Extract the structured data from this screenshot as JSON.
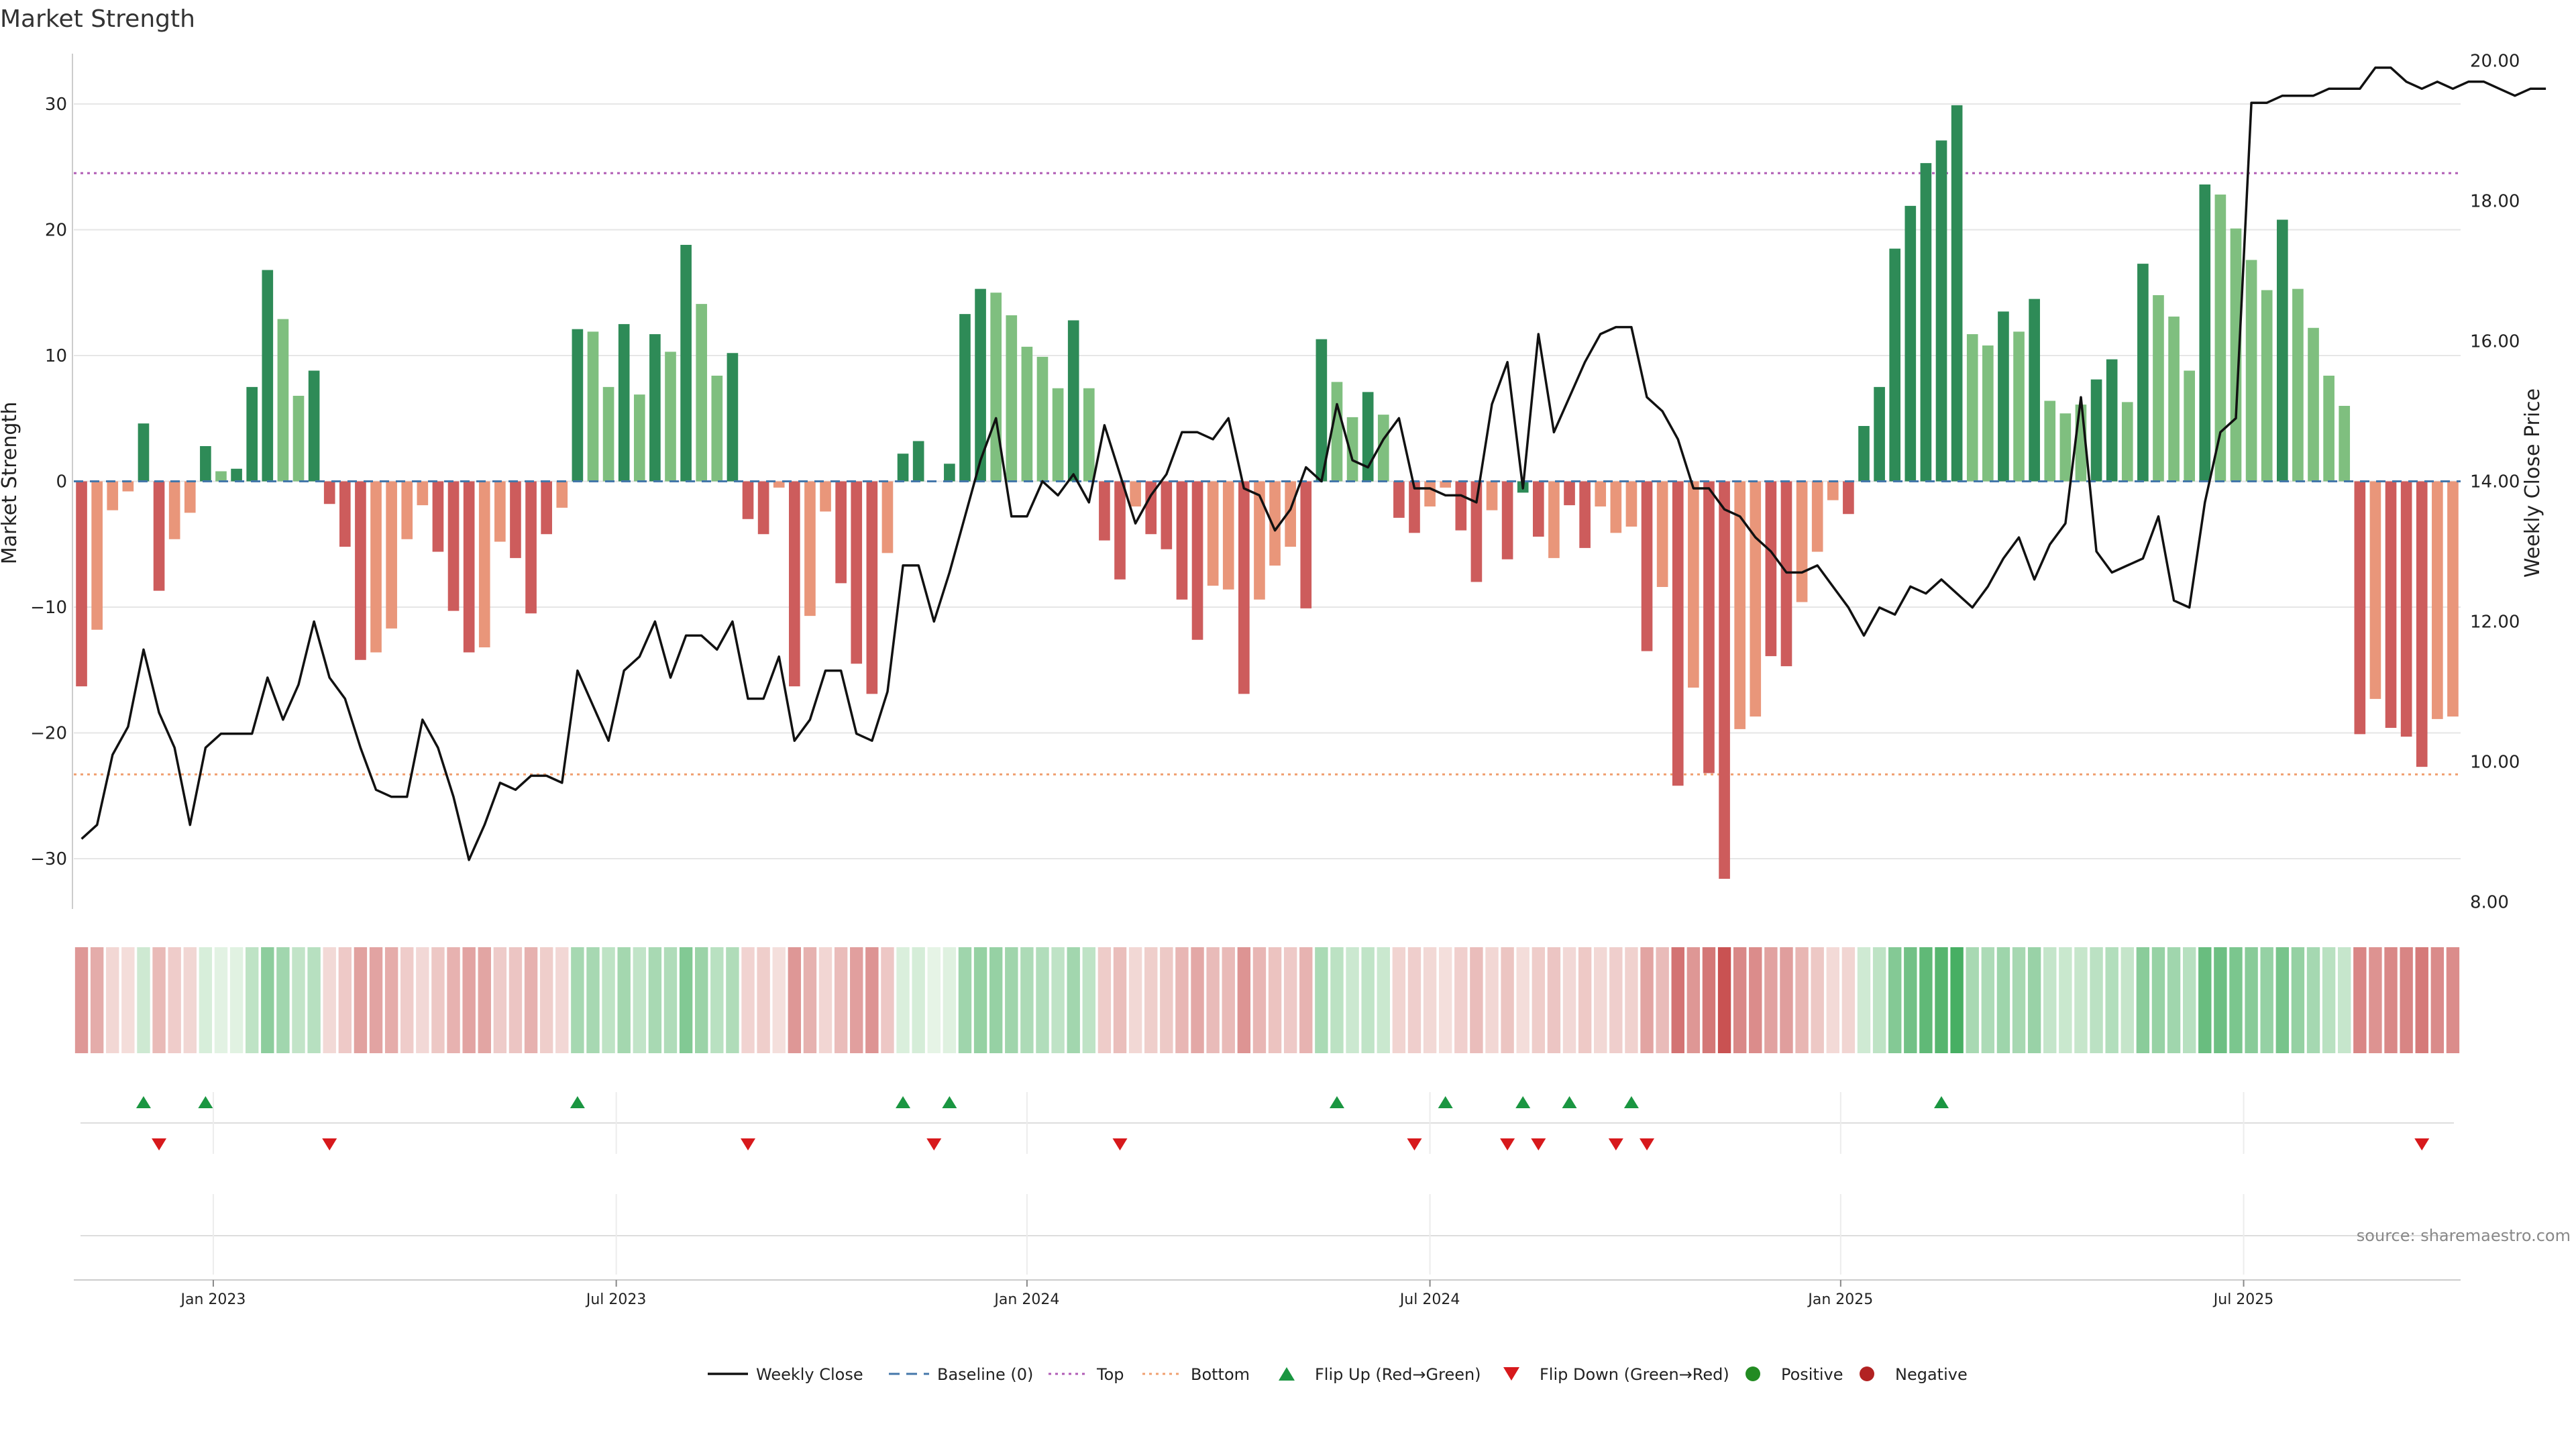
{
  "chart_title": "Market Strength",
  "source_text": "source: sharemaestro.com",
  "colors": {
    "strong_green": "#2e8b57",
    "light_green": "#7fbf7f",
    "strong_red": "#cd5c5c",
    "light_red": "#e9967a",
    "price_line": "#111111",
    "baseline": "#4477aa",
    "top_line": "#b05bb5",
    "bottom_line": "#f0a070",
    "flip_up": "#1a9641",
    "flip_down": "#d7191c",
    "positive": "#228b22",
    "negative": "#b22222"
  },
  "legend": [
    {
      "label": "Weekly Close",
      "kind": "line-solid",
      "color": "#111111"
    },
    {
      "label": "Baseline (0)",
      "kind": "line-dash",
      "color": "#4477aa"
    },
    {
      "label": "Top",
      "kind": "line-dot",
      "color": "#b05bb5"
    },
    {
      "label": "Bottom",
      "kind": "line-dot",
      "color": "#f0a070"
    },
    {
      "label": "Flip Up (Red→Green)",
      "kind": "tri-up",
      "color": "#1a9641"
    },
    {
      "label": "Flip Down (Green→Red)",
      "kind": "tri-down",
      "color": "#d7191c"
    },
    {
      "label": "Positive",
      "kind": "dot",
      "color": "#228b22"
    },
    {
      "label": "Negative",
      "kind": "dot",
      "color": "#b22222"
    }
  ],
  "chart_data": {
    "type": "bar",
    "title": "Market Strength",
    "xlabel": "",
    "ylabel": "Market Strength",
    "y2label": "Weekly Close Price",
    "ylim": [
      -34,
      34
    ],
    "y2lim": [
      7.9,
      20.1
    ],
    "yticks": [
      -30,
      -20,
      -10,
      0,
      10,
      20,
      30
    ],
    "y2ticks": [
      "8.00",
      "10.00",
      "12.00",
      "14.00",
      "16.00",
      "18.00",
      "20.00"
    ],
    "y2tick_values": [
      8,
      10,
      12,
      14,
      16,
      18,
      20
    ],
    "xticks": [
      "Jan 2023",
      "Jul 2023",
      "Jan 2024",
      "Jul 2024",
      "Jan 2025",
      "Jul 2025"
    ],
    "xtick_index": [
      8.5,
      34.5,
      61,
      87,
      113.5,
      139.5
    ],
    "top_level": 24.5,
    "bottom_level": -23.3,
    "strength": [
      -16.3,
      -11.8,
      -2.3,
      -0.8,
      4.6,
      -8.7,
      -4.6,
      -2.5,
      2.8,
      0.8,
      1.0,
      7.5,
      16.8,
      12.9,
      6.8,
      8.8,
      -1.8,
      -5.2,
      -14.2,
      -13.6,
      -11.7,
      -4.6,
      -1.9,
      -5.6,
      -10.3,
      -13.6,
      -13.2,
      -4.8,
      -6.1,
      -10.5,
      -4.2,
      -2.1,
      12.1,
      11.9,
      7.5,
      12.5,
      6.9,
      11.7,
      10.3,
      18.8,
      14.1,
      8.4,
      10.2,
      -3.0,
      -4.2,
      -0.5,
      -16.3,
      -10.7,
      -2.4,
      -8.1,
      -14.5,
      -16.9,
      -5.7,
      2.2,
      3.2,
      0,
      1.4,
      13.3,
      15.3,
      15.0,
      13.2,
      10.7,
      9.9,
      7.4,
      12.8,
      7.4,
      -4.7,
      -7.8,
      -2.0,
      -4.2,
      -5.4,
      -9.4,
      -12.6,
      -8.3,
      -8.6,
      -16.9,
      -9.4,
      -6.7,
      -5.2,
      -10.1,
      11.3,
      7.9,
      5.1,
      7.1,
      5.3,
      -2.9,
      -4.1,
      -2.0,
      -0.5,
      -3.9,
      -8.0,
      -2.3,
      -6.2,
      -0.9,
      -4.4,
      -6.1,
      -1.9,
      -5.3,
      -2.0,
      -4.1,
      -3.6,
      -13.5,
      -8.4,
      -24.2,
      -16.4,
      -23.2,
      -31.6,
      -19.7,
      -18.7,
      -13.9,
      -14.7,
      -9.6,
      -5.6,
      -1.5,
      -2.6,
      4.4,
      7.5,
      18.5,
      21.9,
      25.3,
      27.1,
      29.9,
      11.7,
      10.8,
      13.5,
      11.9,
      14.5,
      6.4,
      5.4,
      6.1,
      8.1,
      9.7,
      6.3,
      17.3,
      14.8,
      13.1,
      8.8,
      23.6,
      22.8,
      20.1,
      17.6,
      15.2,
      20.8,
      15.3,
      12.2,
      8.4,
      6.0,
      -20.1,
      -17.3,
      -19.6,
      -20.3,
      -22.7,
      -18.9,
      -18.7
    ],
    "bar_strength_class": [
      "r",
      "l",
      "l",
      "l",
      "g",
      "r",
      "l",
      "l",
      "g",
      "lg",
      "g",
      "g",
      "g",
      "lg",
      "lg",
      "g",
      "r",
      "r",
      "r",
      "l",
      "l",
      "l",
      "l",
      "r",
      "r",
      "r",
      "l",
      "l",
      "r",
      "r",
      "r",
      "l",
      "g",
      "lg",
      "lg",
      "g",
      "lg",
      "g",
      "lg",
      "g",
      "lg",
      "lg",
      "g",
      "r",
      "r",
      "l",
      "r",
      "l",
      "l",
      "r",
      "r",
      "r",
      "l",
      "g",
      "g",
      "g",
      "g",
      "g",
      "g",
      "lg",
      "lg",
      "lg",
      "lg",
      "lg",
      "g",
      "lg",
      "r",
      "r",
      "l",
      "r",
      "r",
      "r",
      "r",
      "l",
      "l",
      "r",
      "l",
      "l",
      "l",
      "r",
      "g",
      "lg",
      "lg",
      "g",
      "lg",
      "r",
      "r",
      "l",
      "l",
      "r",
      "r",
      "l",
      "r",
      "g",
      "r",
      "l",
      "r",
      "r",
      "l",
      "l",
      "l",
      "r",
      "l",
      "r",
      "l",
      "r",
      "r",
      "l",
      "l",
      "r",
      "r",
      "l",
      "l",
      "l",
      "r",
      "g",
      "g",
      "g",
      "g",
      "g",
      "g",
      "g",
      "lg",
      "lg",
      "g",
      "lg",
      "g",
      "lg",
      "lg",
      "lg",
      "g",
      "g",
      "lg",
      "g",
      "lg",
      "lg",
      "lg",
      "g",
      "lg",
      "lg",
      "lg",
      "lg",
      "g",
      "lg",
      "lg",
      "lg",
      "lg",
      "r",
      "l",
      "r",
      "r",
      "r",
      "l",
      "l"
    ],
    "price": [
      8.9,
      9.1,
      10.1,
      10.5,
      11.6,
      10.7,
      10.2,
      9.1,
      10.2,
      10.4,
      10.4,
      10.4,
      11.2,
      10.6,
      11.1,
      12.0,
      11.2,
      10.9,
      10.2,
      9.6,
      9.5,
      9.5,
      10.6,
      10.2,
      9.5,
      8.6,
      9.1,
      9.7,
      9.6,
      9.8,
      9.8,
      9.7,
      11.3,
      10.8,
      10.3,
      11.3,
      11.5,
      12.0,
      11.2,
      11.8,
      11.8,
      11.6,
      12.0,
      10.9,
      10.9,
      11.5,
      10.3,
      10.6,
      11.3,
      11.3,
      10.4,
      10.3,
      11.0,
      12.8,
      12.8,
      12.0,
      12.7,
      13.5,
      14.3,
      14.9,
      13.5,
      13.5,
      14.0,
      13.8,
      14.1,
      13.7,
      14.8,
      14.1,
      13.4,
      13.8,
      14.1,
      14.7,
      14.7,
      14.6,
      14.9,
      13.9,
      13.8,
      13.3,
      13.6,
      14.2,
      14.0,
      15.1,
      14.3,
      14.2,
      14.6,
      14.9,
      13.9,
      13.9,
      13.8,
      13.8,
      13.7,
      15.1,
      15.7,
      13.9,
      16.1,
      14.7,
      15.2,
      15.7,
      16.1,
      16.2,
      16.2,
      15.2,
      15.0,
      14.6,
      13.9,
      13.9,
      13.6,
      13.5,
      13.2,
      13.0,
      12.7,
      12.7,
      12.8,
      12.5,
      12.2,
      11.8,
      12.2,
      12.1,
      12.5,
      12.4,
      12.6,
      12.4,
      12.2,
      12.5,
      12.9,
      13.2,
      12.6,
      13.1,
      13.4,
      15.2,
      13.0,
      12.7,
      12.8,
      12.9,
      13.5,
      12.3,
      12.2,
      13.7,
      14.7,
      14.9,
      19.4,
      19.4,
      19.5,
      19.5,
      19.5,
      19.6,
      19.6,
      19.6,
      19.9,
      19.9,
      19.7,
      19.6,
      19.7,
      19.6,
      19.7,
      19.7,
      19.6,
      19.5,
      19.6,
      19.6
    ],
    "flip_up_index": [
      4,
      8,
      32,
      53,
      56,
      81,
      88,
      93,
      96,
      100,
      120
    ],
    "flip_down_index": [
      5,
      16,
      43,
      55,
      67,
      86,
      92,
      94,
      99,
      101,
      151
    ],
    "heat_strength": [
      -16.3,
      -11.8,
      -2.3,
      -0.8,
      4.6,
      -8.7,
      -4.6,
      -2.5,
      2.8,
      0.8,
      1.0,
      7.5,
      16.8,
      12.9,
      6.8,
      8.8,
      -1.8,
      -5.2,
      -14.2,
      -13.6,
      -11.7,
      -4.6,
      -1.9,
      -5.6,
      -10.3,
      -13.6,
      -13.2,
      -4.8,
      -6.1,
      -10.5,
      -4.2,
      -2.1,
      12.1,
      11.9,
      7.5,
      12.5,
      6.9,
      11.7,
      10.3,
      18.8,
      14.1,
      8.4,
      10.2,
      -3.0,
      -4.2,
      -0.5,
      -16.3,
      -10.7,
      -2.4,
      -8.1,
      -14.5,
      -16.9,
      -5.7,
      2.2,
      3.2,
      0,
      1.4,
      13.3,
      15.3,
      15.0,
      13.2,
      10.7,
      9.9,
      7.4,
      12.8,
      7.4,
      -4.7,
      -7.8,
      -2.0,
      -4.2,
      -5.4,
      -9.4,
      -12.6,
      -8.3,
      -8.6,
      -16.9,
      -9.4,
      -6.7,
      -5.2,
      -10.1,
      11.3,
      7.9,
      5.1,
      7.1,
      5.3,
      -2.9,
      -4.1,
      -2.0,
      -0.5,
      -3.9,
      -8.0,
      -2.3,
      -6.2,
      -0.9,
      -4.4,
      -6.1,
      -1.9,
      -5.3,
      -2.0,
      -4.1,
      -3.6,
      -13.5,
      -8.4,
      -24.2,
      -16.4,
      -23.2,
      -31.6,
      -19.7,
      -18.7,
      -13.9,
      -14.7,
      -9.6,
      -5.6,
      -1.5,
      -2.6,
      4.4,
      7.5,
      18.5,
      21.9,
      25.3,
      27.1,
      29.9,
      11.7,
      10.8,
      13.5,
      11.9,
      14.5,
      6.4,
      5.4,
      6.1,
      8.1,
      9.7,
      6.3,
      17.3,
      14.8,
      13.1,
      8.8,
      23.6,
      22.8,
      20.1,
      17.6,
      15.2,
      20.8,
      15.3,
      12.2,
      8.4,
      6.0,
      -20.1,
      -17.3,
      -19.6,
      -20.3,
      -22.7,
      -18.9,
      -18.7
    ],
    "legend_position": "bottom-center",
    "grid": true
  }
}
